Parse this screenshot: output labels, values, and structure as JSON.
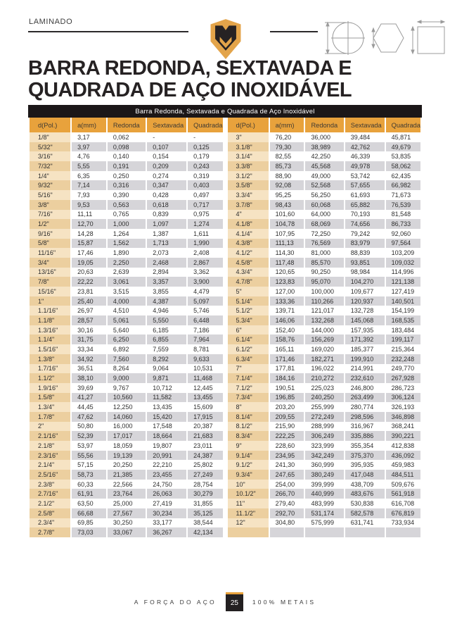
{
  "header": {
    "section_label": "LAMINADO"
  },
  "title": {
    "line1": "BARRA REDONDA, SEXTAVADA E",
    "line2": "QUADRADA DE AÇO INOXIDÁVEL"
  },
  "table": {
    "caption": "Barra Redonda, Sextavada e Quadrada de Aço Inoxidável",
    "columns": [
      "d(Pol.)",
      "a(mm)",
      "Redonda",
      "Sextavada",
      "Quadrada"
    ],
    "left_rows": [
      [
        "1/8\"",
        "3,17",
        "0,062",
        "-",
        "-"
      ],
      [
        "5/32\"",
        "3,97",
        "0,098",
        "0,107",
        "0,125"
      ],
      [
        "3/16\"",
        "4,76",
        "0,140",
        "0,154",
        "0,179"
      ],
      [
        "7/32\"",
        "5,55",
        "0,191",
        "0,209",
        "0,243"
      ],
      [
        "1/4\"",
        "6,35",
        "0,250",
        "0,274",
        "0,319"
      ],
      [
        "9/32\"",
        "7,14",
        "0,316",
        "0,347",
        "0,403"
      ],
      [
        "5/16\"",
        "7,93",
        "0,390",
        "0,428",
        "0,497"
      ],
      [
        "3/8\"",
        "9,53",
        "0,563",
        "0,618",
        "0,717"
      ],
      [
        "7/16\"",
        "11,11",
        "0,765",
        "0,839",
        "0,975"
      ],
      [
        "1/2\"",
        "12,70",
        "1,000",
        "1,097",
        "1,274"
      ],
      [
        "9/16\"",
        "14,28",
        "1,264",
        "1,387",
        "1,611"
      ],
      [
        "5/8\"",
        "15,87",
        "1,562",
        "1,713",
        "1,990"
      ],
      [
        "11/16\"",
        "17,46",
        "1,890",
        "2,073",
        "2,408"
      ],
      [
        "3/4\"",
        "19,05",
        "2,250",
        "2,468",
        "2,867"
      ],
      [
        "13/16\"",
        "20,63",
        "2,639",
        "2,894",
        "3,362"
      ],
      [
        "7/8\"",
        "22,22",
        "3,061",
        "3,357",
        "3,900"
      ],
      [
        "15/16\"",
        "23,81",
        "3,515",
        "3,855",
        "4,479"
      ],
      [
        "1\"",
        "25,40",
        "4,000",
        "4,387",
        "5,097"
      ],
      [
        "1.1/16\"",
        "26,97",
        "4,510",
        "4,946",
        "5,746"
      ],
      [
        "1.1/8\"",
        "28,57",
        "5,061",
        "5,550",
        "6,448"
      ],
      [
        "1.3/16\"",
        "30,16",
        "5,640",
        "6,185",
        "7,186"
      ],
      [
        "1.1/4\"",
        "31,75",
        "6,250",
        "6,855",
        "7,964"
      ],
      [
        "1.5/16\"",
        "33,34",
        "6,892",
        "7,559",
        "8,781"
      ],
      [
        "1.3/8\"",
        "34,92",
        "7,560",
        "8,292",
        "9,633"
      ],
      [
        "1.7/16\"",
        "36,51",
        "8,264",
        "9,064",
        "10,531"
      ],
      [
        "1.1/2\"",
        "38,10",
        "9,000",
        "9,871",
        "11,468"
      ],
      [
        "1.9/16\"",
        "39,69",
        "9,767",
        "10,712",
        "12,445"
      ],
      [
        "1.5/8\"",
        "41,27",
        "10,560",
        "11,582",
        "13,455"
      ],
      [
        "1.3/4\"",
        "44,45",
        "12,250",
        "13,435",
        "15,609"
      ],
      [
        "1.7/8\"",
        "47,62",
        "14,060",
        "15,420",
        "17,915"
      ],
      [
        "2\"",
        "50,80",
        "16,000",
        "17,548",
        "20,387"
      ],
      [
        "2.1/16\"",
        "52,39",
        "17,017",
        "18,664",
        "21,683"
      ],
      [
        "2.1/8\"",
        "53,97",
        "18,059",
        "19,807",
        "23,011"
      ],
      [
        "2.3/16\"",
        "55,56",
        "19,139",
        "20,991",
        "24,387"
      ],
      [
        "2.1/4\"",
        "57,15",
        "20,250",
        "22,210",
        "25,802"
      ],
      [
        "2.5/16\"",
        "58,73",
        "21,385",
        "23,455",
        "27,249"
      ],
      [
        "2.3/8\"",
        "60,33",
        "22,566",
        "24,750",
        "28,754"
      ],
      [
        "2.7/16\"",
        "61,91",
        "23,764",
        "26,063",
        "30,279"
      ],
      [
        "2.1/2\"",
        "63,50",
        "25,000",
        "27,419",
        "31,855"
      ],
      [
        "2.5/8\"",
        "66,68",
        "27,567",
        "30,234",
        "35,125"
      ],
      [
        "2.3/4\"",
        "69,85",
        "30,250",
        "33,177",
        "38,544"
      ],
      [
        "2.7/8\"",
        "73,03",
        "33,067",
        "36,267",
        "42,134"
      ]
    ],
    "right_rows": [
      [
        "3\"",
        "76,20",
        "36,000",
        "39,484",
        "45,871"
      ],
      [
        "3.1/8\"",
        "79,30",
        "38,989",
        "42,762",
        "49,679"
      ],
      [
        "3.1/4\"",
        "82,55",
        "42,250",
        "46,339",
        "53,835"
      ],
      [
        "3.3/8\"",
        "85,73",
        "45,568",
        "49,978",
        "58,062"
      ],
      [
        "3.1/2\"",
        "88,90",
        "49,000",
        "53,742",
        "62,435"
      ],
      [
        "3.5/8\"",
        "92,08",
        "52,568",
        "57,655",
        "66,982"
      ],
      [
        "3.3/4\"",
        "95,25",
        "56,250",
        "61,693",
        "71,673"
      ],
      [
        "3.7/8\"",
        "98,43",
        "60,068",
        "65,882",
        "76,539"
      ],
      [
        "4\"",
        "101,60",
        "64,000",
        "70,193",
        "81,548"
      ],
      [
        "4.1/8\"",
        "104,78",
        "68,069",
        "74,656",
        "86,733"
      ],
      [
        "4.1/4\"",
        "107,95",
        "72,250",
        "79,242",
        "92,060"
      ],
      [
        "4.3/8\"",
        "111,13",
        "76,569",
        "83,979",
        "97,564"
      ],
      [
        "4.1/2\"",
        "114,30",
        "81,000",
        "88,839",
        "103,209"
      ],
      [
        "4.5/8\"",
        "117,48",
        "85,570",
        "93,851",
        "109,032"
      ],
      [
        "4.3/4\"",
        "120,65",
        "90,250",
        "98,984",
        "114,996"
      ],
      [
        "4.7/8\"",
        "123,83",
        "95,070",
        "104,270",
        "121,138"
      ],
      [
        "5\"",
        "127,00",
        "100,000",
        "109,677",
        "127,419"
      ],
      [
        "5.1/4\"",
        "133,36",
        "110,266",
        "120,937",
        "140,501"
      ],
      [
        "5.1/2\"",
        "139,71",
        "121,017",
        "132,728",
        "154,199"
      ],
      [
        "5.3/4\"",
        "146,06",
        "132,268",
        "145,068",
        "168,535"
      ],
      [
        "6\"",
        "152,40",
        "144,000",
        "157,935",
        "183,484"
      ],
      [
        "6.1/4\"",
        "158,76",
        "156,269",
        "171,392",
        "199,117"
      ],
      [
        "6.1/2\"",
        "165,11",
        "169,020",
        "185,377",
        "215,364"
      ],
      [
        "6.3/4\"",
        "171,46",
        "182,271",
        "199,910",
        "232,248"
      ],
      [
        "7\"",
        "177,81",
        "196,022",
        "214,991",
        "249,770"
      ],
      [
        "7.1/4\"",
        "184,16",
        "210,272",
        "232,610",
        "267,928"
      ],
      [
        "7.1/2\"",
        "190,51",
        "225,023",
        "246,800",
        "286,723"
      ],
      [
        "7.3/4\"",
        "196,85",
        "240,250",
        "263,499",
        "306,124"
      ],
      [
        "8\"",
        "203,20",
        "255,999",
        "280,774",
        "326,193"
      ],
      [
        "8.1/4\"",
        "209,55",
        "272,249",
        "298,596",
        "346,898"
      ],
      [
        "8.1/2\"",
        "215,90",
        "288,999",
        "316,967",
        "368,241"
      ],
      [
        "8.3/4\"",
        "222,25",
        "306,249",
        "335,886",
        "390,221"
      ],
      [
        "9\"",
        "228,60",
        "323,999",
        "355,354",
        "412,838"
      ],
      [
        "9.1/4\"",
        "234,95",
        "342,249",
        "375,370",
        "436,092"
      ],
      [
        "9.1/2\"",
        "241,30",
        "360,999",
        "395,935",
        "459,983"
      ],
      [
        "9.3/4\"",
        "247,65",
        "380,249",
        "417,048",
        "484,511"
      ],
      [
        "10\"",
        "254,00",
        "399,999",
        "438,709",
        "509,676"
      ],
      [
        "10.1/2\"",
        "266,70",
        "440,999",
        "483,676",
        "561,918"
      ],
      [
        "11\"",
        "279,40",
        "483,999",
        "530,838",
        "616,708"
      ],
      [
        "11.1/2\"",
        "292,70",
        "531,174",
        "582,578",
        "676,819"
      ],
      [
        "12\"",
        "304,80",
        "575,999",
        "631,741",
        "733,934"
      ],
      [
        "",
        "",
        "",
        "",
        ""
      ]
    ]
  },
  "footer": {
    "slogan_left": "A FORÇA DO AÇO",
    "page_number": "25",
    "slogan_right": "100% METAIS"
  },
  "colors": {
    "gold": "#E8A23C",
    "tan_light": "#F6E3C3",
    "tan_dark": "#ECCF9F",
    "stripe_gray": "#D6D5D9",
    "bar_black": "#1B1718"
  }
}
